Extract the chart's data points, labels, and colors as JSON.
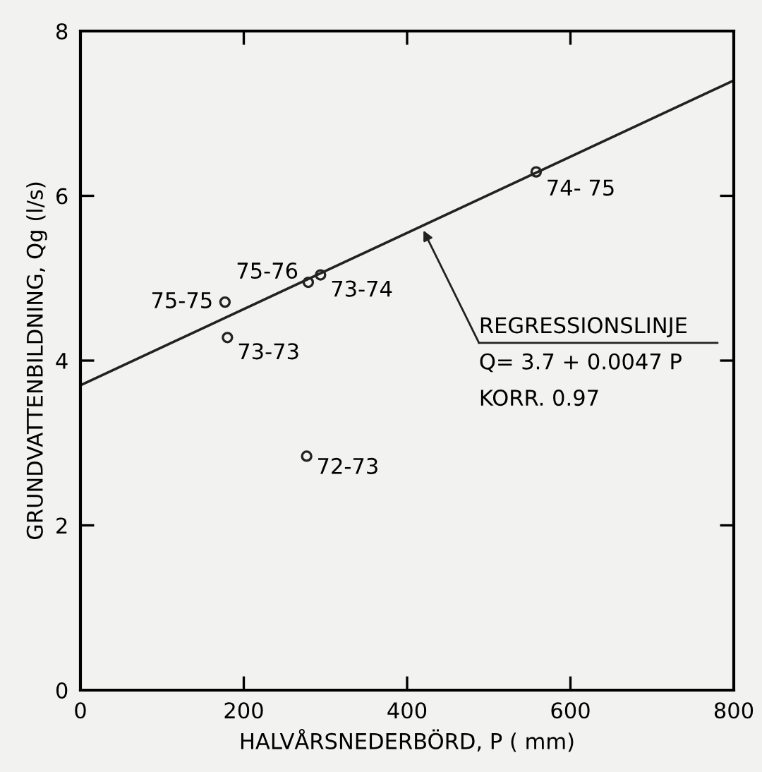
{
  "chart_data": {
    "type": "scatter",
    "xlabel": "HALVÅRSNEDERBÖRD, P ( mm)",
    "ylabel": "GRUNDVATTENBILDNING, Qg (l/s)",
    "xlim": [
      0,
      800
    ],
    "ylim": [
      0,
      8
    ],
    "xticks": [
      0,
      200,
      400,
      600,
      800
    ],
    "yticks": [
      0,
      2,
      4,
      6,
      8
    ],
    "grid": false,
    "legend": false,
    "series": [
      {
        "color": "#222222",
        "marker": "circle",
        "x": [
          558,
          279,
          294,
          177,
          180,
          277
        ],
        "values": [
          6.29,
          4.95,
          5.04,
          4.71,
          4.28,
          2.84
        ]
      },
      {
        "type": "line",
        "color": "#222222",
        "line_style": "solid",
        "marker": "none",
        "x": [
          0,
          800
        ],
        "values": [
          3.7,
          7.4
        ]
      }
    ],
    "annotations": [
      {
        "text": "74- 75",
        "x": 558,
        "y": 6.29
      },
      {
        "text": "75-76",
        "x": 279,
        "y": 4.95
      },
      {
        "text": "73-74",
        "x": 294,
        "y": 5.04
      },
      {
        "text": "75-75",
        "x": 177,
        "y": 4.71
      },
      {
        "text": "73-73",
        "x": 180,
        "y": 4.28
      },
      {
        "text": "72-73",
        "x": 277,
        "y": 2.84
      },
      {
        "text": "REGRESSIONSLINJE",
        "x": 420,
        "y": 5.64
      },
      "Q= 3.7 + 0.0047 P",
      "KORR. 0.97"
    ]
  }
}
